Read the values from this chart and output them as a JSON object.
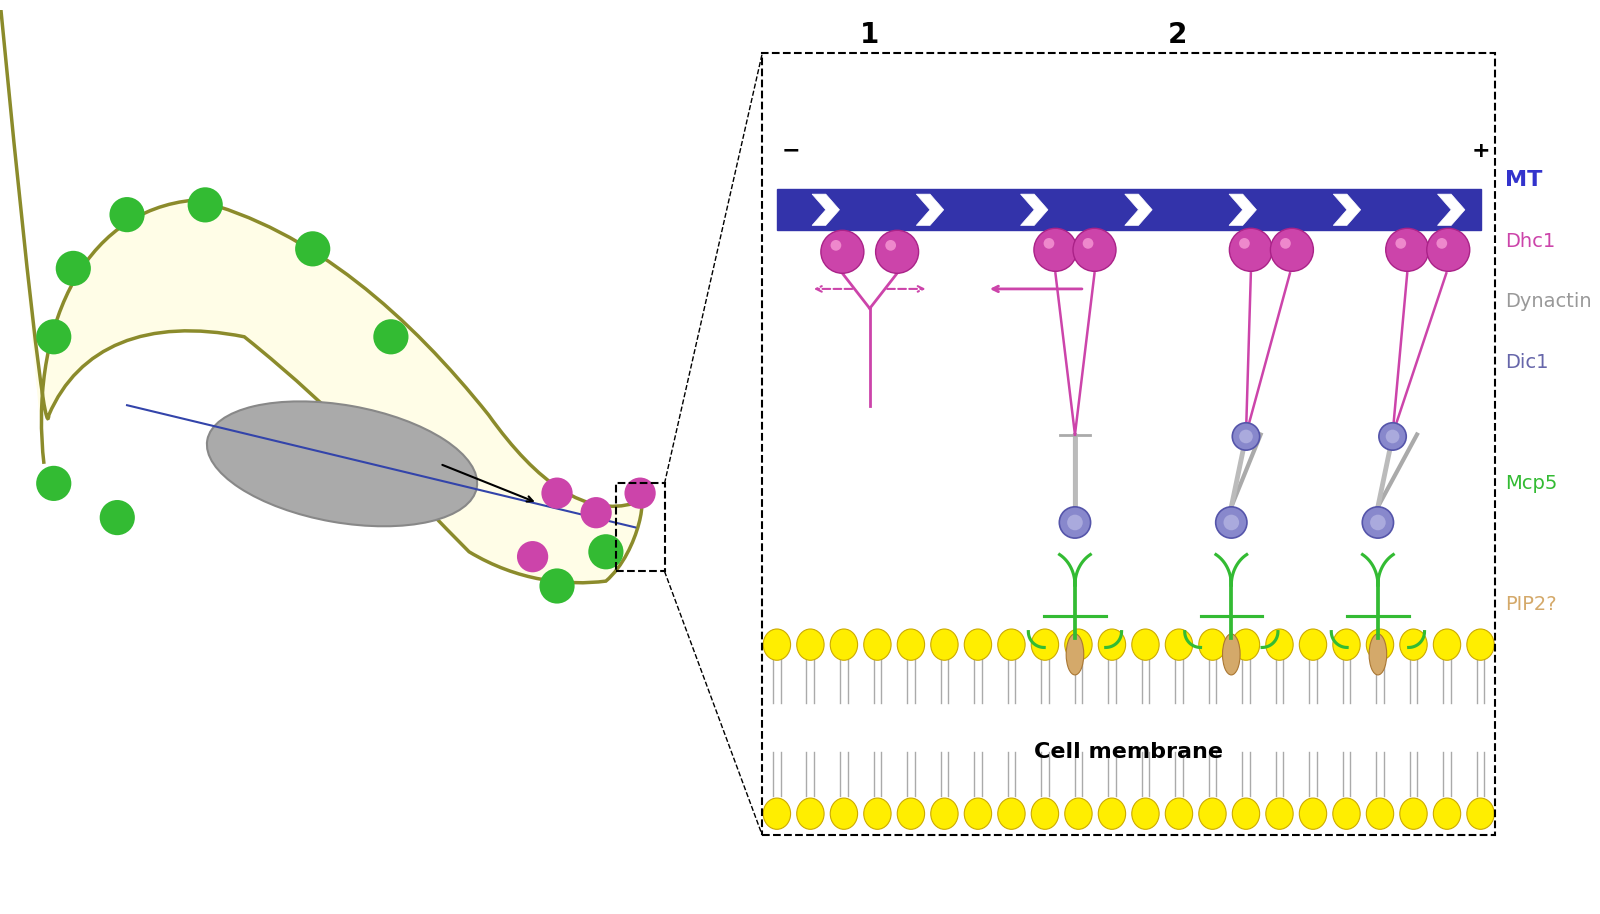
{
  "bg_color": "#ffffff",
  "cell_outline_color": "#8B8B2B",
  "cell_fill_color": "#FFFDE7",
  "nucleus_color": "#AAAAAA",
  "mt_color": "#3333AA",
  "mt_arrow_color": "#ffffff",
  "dhc1_color": "#CC44AA",
  "dynactin_color": "#AAAAAA",
  "dic1_color": "#6666AA",
  "mcp5_color": "#33BB33",
  "pip2_color": "#D4A96A",
  "lipid_head_color": "#FFEE00",
  "lipid_tail_color": "#AAAAAA",
  "legend_labels": [
    "MT",
    "Dhc1",
    "Dynactin",
    "Dic1",
    "Mcp5",
    "PIP2?"
  ],
  "legend_colors": [
    "#3333CC",
    "#CC44AA",
    "#999999",
    "#6666AA",
    "#33BB33",
    "#D4A96A"
  ],
  "panel_label_1": "1",
  "panel_label_2": "2",
  "minus_label": "−",
  "plus_label": "+",
  "cell_membrane_label": "Cell membrane"
}
